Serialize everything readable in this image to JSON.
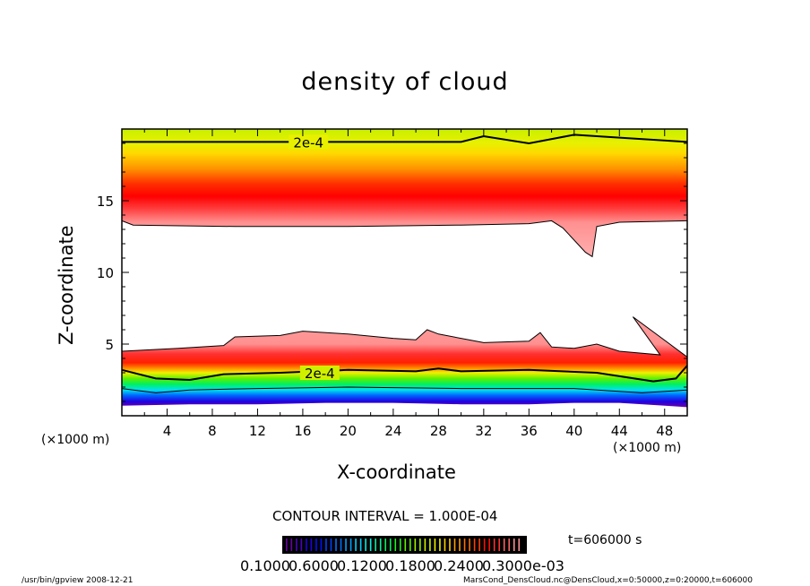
{
  "chart_data": {
    "type": "contour",
    "title": "density of cloud",
    "xlabel": "X-coordinate",
    "ylabel": "Z-coordinate",
    "x_unit": "(×1000 m)",
    "y_unit": "(×1000 m)",
    "xlim": [
      0,
      50
    ],
    "ylim": [
      0,
      20
    ],
    "x_ticks": [
      "4",
      "8",
      "12",
      "16",
      "20",
      "24",
      "28",
      "32",
      "36",
      "40",
      "44",
      "48"
    ],
    "y_ticks": [
      "5",
      "10",
      "15"
    ],
    "contour_labels": [
      "2e-4",
      "2e-4"
    ],
    "contour_interval": "CONTOUR INTERVAL = 1.000E-04",
    "time_label": "t=606000 s",
    "colorbar_labels": [
      "0.1000",
      "0.6000",
      "0.1200",
      "0.1800",
      "0.2400",
      "0.3000e-03"
    ],
    "colorbar_colors": [
      "#6a00a8",
      "#4b00c8",
      "#1e00e6",
      "#0010ff",
      "#0040ff",
      "#0070ff",
      "#00a0ff",
      "#00d0ff",
      "#00f0e0",
      "#00f0a0",
      "#00f060",
      "#20f020",
      "#60f000",
      "#a0f000",
      "#d0f000",
      "#f0f000",
      "#ffd000",
      "#ffa000",
      "#ff7000",
      "#ff4000",
      "#ff1000",
      "#ff3030",
      "#ff6060",
      "#ff9090"
    ]
  },
  "footer": {
    "left": "/usr/bin/gpview   2008-12-21",
    "right": "MarsCond_DensCloud.nc@DensCloud,x=0:50000,z=0:20000,t=606000"
  }
}
